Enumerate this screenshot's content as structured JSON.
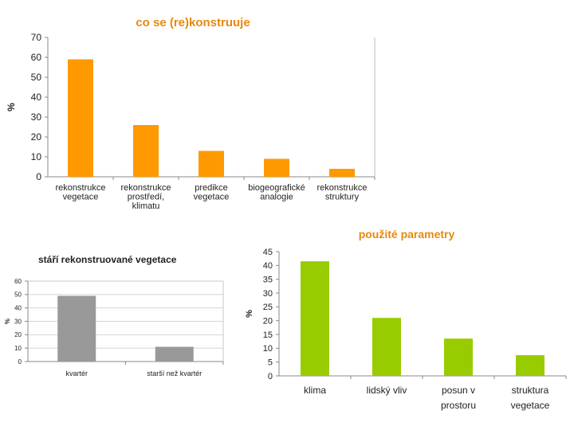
{
  "chart_data": [
    {
      "type": "bar",
      "title": "co se (re)konstruuje",
      "ylabel": "%",
      "xlabel": "",
      "ylim": [
        0,
        70
      ],
      "yticks": [
        0,
        10,
        20,
        30,
        40,
        50,
        60,
        70
      ],
      "categories": [
        [
          "rekonstrukce",
          "vegetace"
        ],
        [
          "rekonstrukce",
          "prostředí,",
          "klimatu"
        ],
        [
          "predikce",
          "vegetace"
        ],
        [
          "biogeografické",
          "analogie"
        ],
        [
          "rekonstrukce",
          "struktury"
        ]
      ],
      "values": [
        59,
        26,
        13,
        9,
        4
      ],
      "color": "#FF9900",
      "title_color": "#E8890C",
      "grid": false,
      "legend": "none"
    },
    {
      "type": "bar",
      "title": "stáří rekonstruované vegetace",
      "ylabel": "%",
      "xlabel": "",
      "ylim": [
        0,
        60
      ],
      "yticks": [
        0,
        10,
        20,
        30,
        40,
        50,
        60
      ],
      "categories": [
        [
          "kvartér"
        ],
        [
          "starší než kvartér"
        ]
      ],
      "values": [
        49,
        11
      ],
      "color": "#999999",
      "title_color": "#222222",
      "grid": true,
      "legend": "none"
    },
    {
      "type": "bar",
      "title": "použité parametry",
      "ylabel": "%",
      "xlabel": "",
      "ylim": [
        0,
        45
      ],
      "yticks": [
        0,
        5,
        10,
        15,
        20,
        25,
        30,
        35,
        40,
        45
      ],
      "categories": [
        [
          "klima"
        ],
        [
          "lidský vliv"
        ],
        [
          "posun v",
          "prostoru"
        ],
        [
          "struktura",
          "vegetace"
        ]
      ],
      "values": [
        41.5,
        21,
        13.5,
        7.5
      ],
      "color": "#99CC00",
      "title_color": "#E8890C",
      "grid": false,
      "legend": "none"
    }
  ]
}
